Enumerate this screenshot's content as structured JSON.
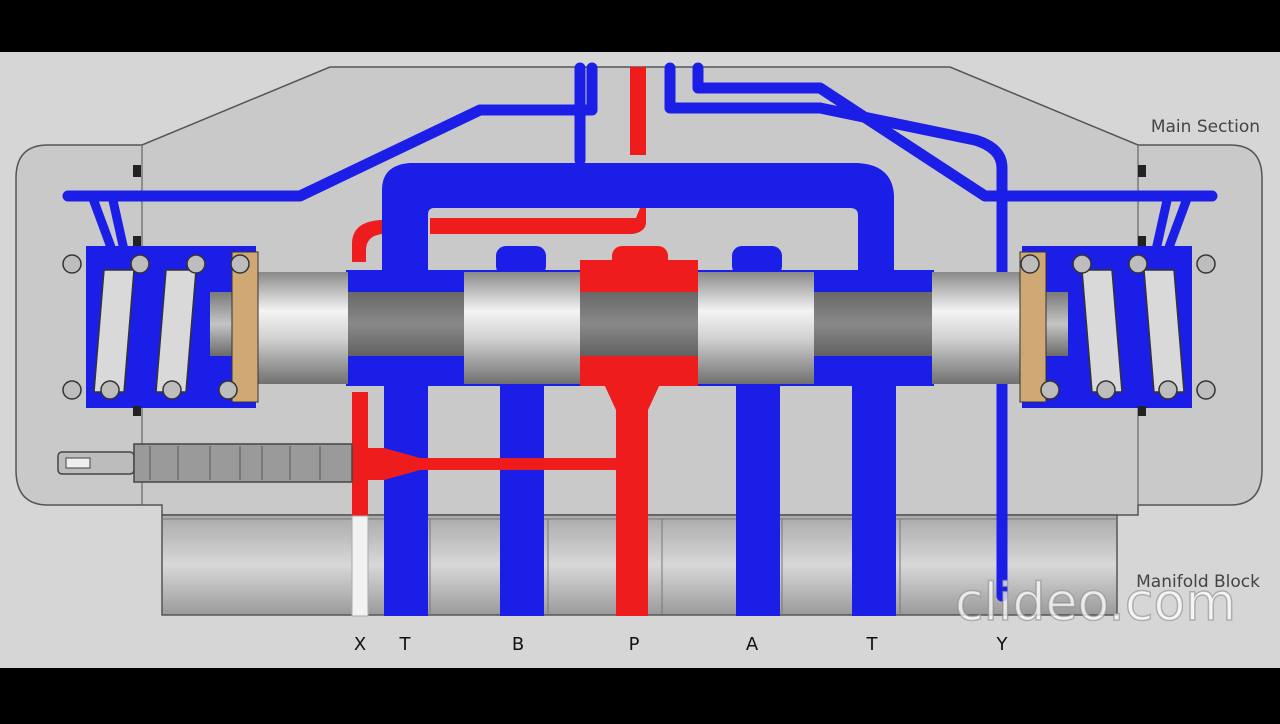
{
  "labels": {
    "main_section": "Main Section",
    "manifold_block": "Manifold Block"
  },
  "ports": {
    "x": "X",
    "t1": "T",
    "b": "B",
    "p": "P",
    "a": "A",
    "t2": "T",
    "y": "Y"
  },
  "watermark": "clideo.com",
  "colors": {
    "pressure": "#ee1c1c",
    "tank": "#1b1ee6",
    "background": "#d3d3d3",
    "body": "#c8c8c8",
    "letterbox": "#000000"
  }
}
